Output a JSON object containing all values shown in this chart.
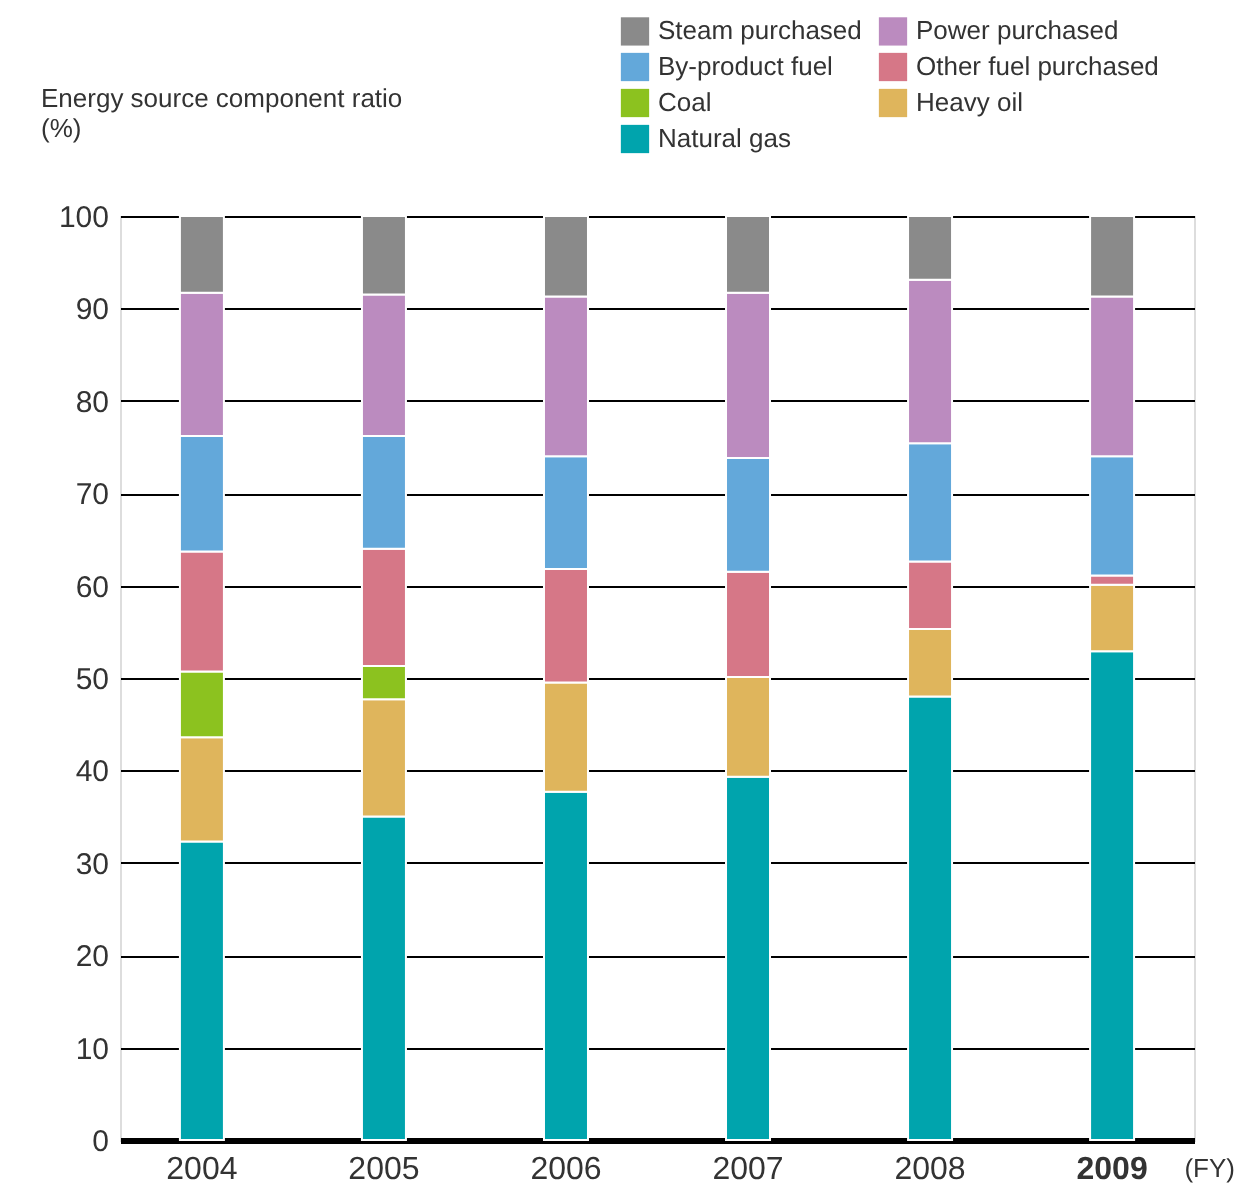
{
  "chart_data": {
    "type": "bar",
    "stacked": true,
    "ylabel": "Energy source component ratio\n(%)",
    "xlabel": "(FY)",
    "categories": [
      "2004",
      "2005",
      "2006",
      "2007",
      "2008",
      "2009"
    ],
    "ylim": [
      0,
      100
    ],
    "yticks": [
      0,
      10,
      20,
      30,
      40,
      50,
      60,
      70,
      80,
      90,
      100
    ],
    "grid": "y",
    "legend": "top right",
    "series": [
      {
        "name": "Natural gas",
        "color": "#00a4ad",
        "values": [
          32.3,
          35.0,
          37.7,
          39.3,
          48.0,
          52.9
        ]
      },
      {
        "name": "Heavy oil",
        "color": "#dfb55c",
        "values": [
          11.3,
          12.7,
          11.8,
          10.8,
          7.3,
          7.2
        ]
      },
      {
        "name": "Coal",
        "color": "#8cc21f",
        "values": [
          7.1,
          3.6,
          null,
          null,
          null,
          null
        ]
      },
      {
        "name": "Other fuel purchased",
        "color": "#d67787",
        "values": [
          13.0,
          12.7,
          12.3,
          11.4,
          7.3,
          1.0
        ]
      },
      {
        "name": "By-product fuel",
        "color": "#63a8da",
        "values": [
          12.5,
          12.2,
          12.2,
          12.3,
          12.8,
          12.9
        ]
      },
      {
        "name": "Power purchased",
        "color": "#bb8bbf",
        "values": [
          15.5,
          15.3,
          17.3,
          17.9,
          17.7,
          17.3
        ]
      },
      {
        "name": "Steam purchased",
        "color": "#8a8a8a",
        "values": [
          8.3,
          8.5,
          8.7,
          8.3,
          6.9,
          8.7
        ]
      }
    ]
  }
}
